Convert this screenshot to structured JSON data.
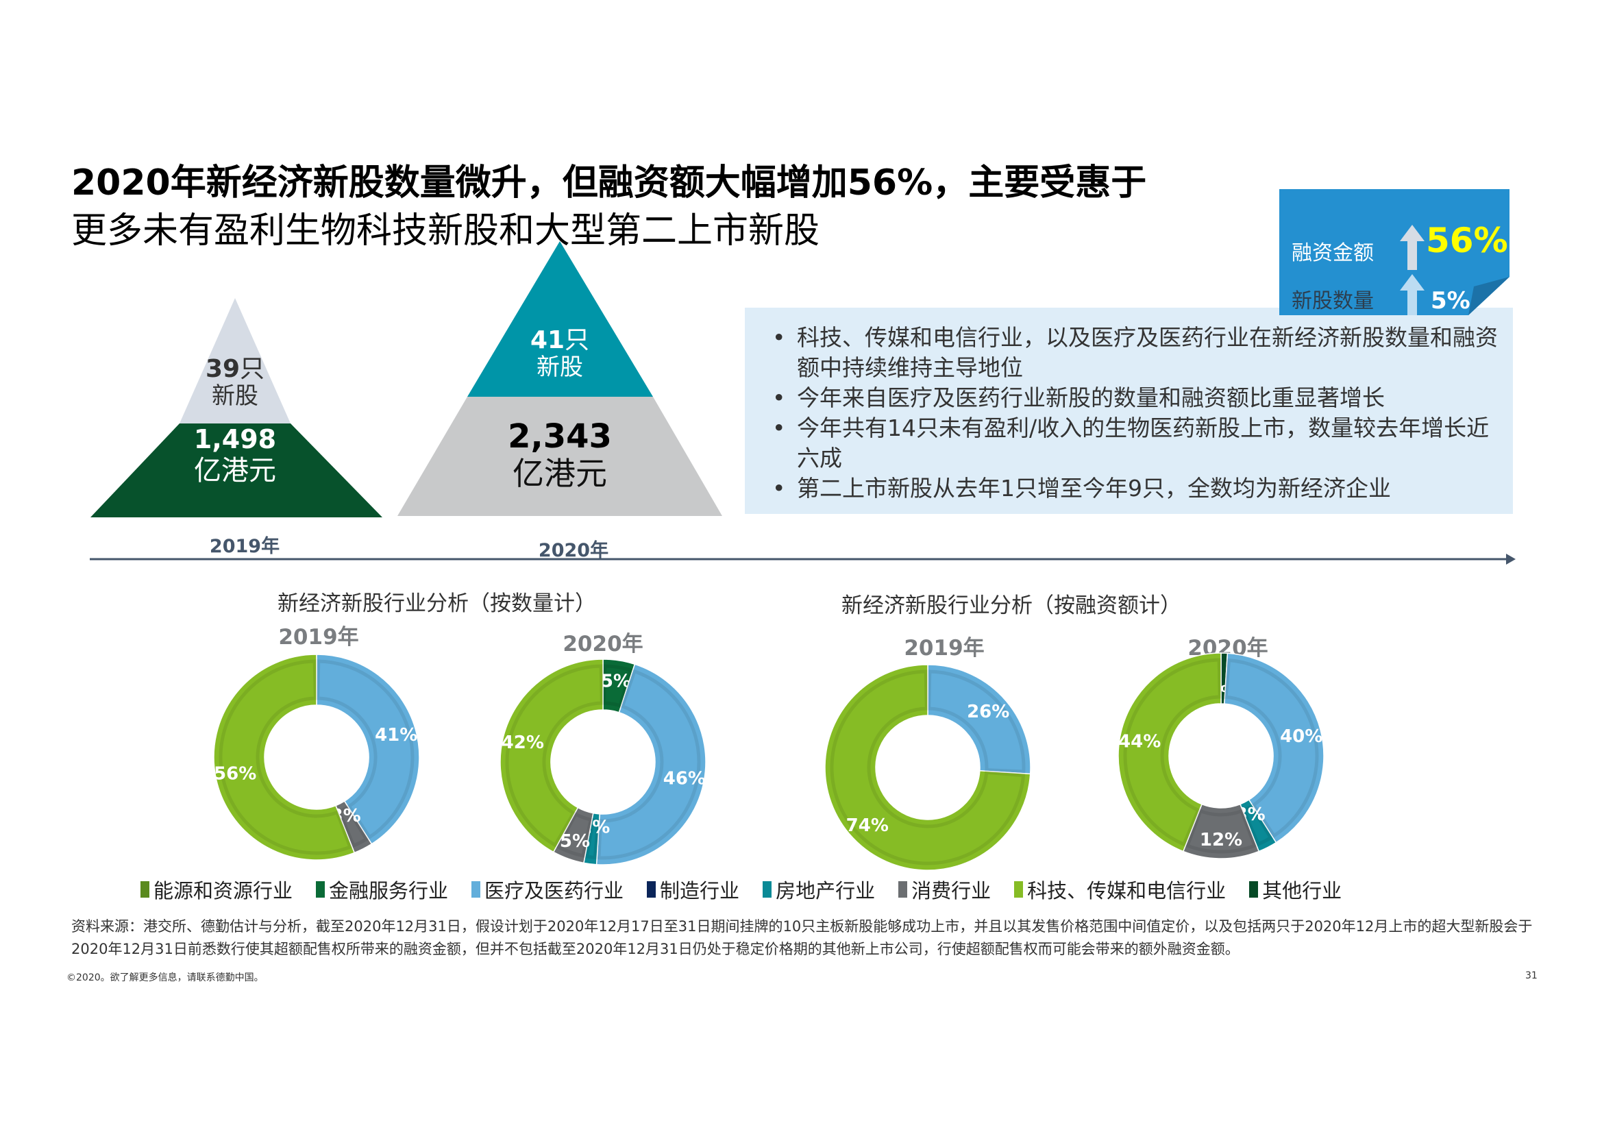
{
  "title": {
    "line1": "2020年新经济新股数量微升，但融资额大幅增加56%，主要受惠于",
    "line2": "更多未有盈利生物科技新股和大型第二上市新股"
  },
  "callout": {
    "funding_label": "融资金额",
    "funding_value": "56%",
    "count_label": "新股数量",
    "count_value": "5%",
    "colors": {
      "bg": "#2490d0",
      "fold": "#1c72a8",
      "highlight": "#ffff00"
    }
  },
  "pyramids": {
    "y2019": {
      "count_number": "39",
      "count_unit": "只",
      "count_label": "新股",
      "amount": "1,498",
      "amount_unit": "亿港元",
      "year_label": "2019年",
      "top_color": "#d6dce5",
      "bottom_color": "#07522c"
    },
    "y2020": {
      "count_number": "41",
      "count_unit": "只",
      "count_label": "新股",
      "amount": "2,343",
      "amount_unit": "亿港元",
      "year_label": "2020年",
      "top_color": "#0095a8",
      "bottom_color": "#c8c9ca"
    }
  },
  "info_bullets": [
    "科技、传媒和电信行业，以及医疗及医药行业在新经济新股数量和融资额中持续维持主导地位",
    "今年来自医疗及医药行业新股的数量和融资额比重显著增长",
    "今年共有14只未有盈利/收入的生物医药新股上市，数量较去年增长近六成",
    "第二上市新股从去年1只增至今年9只，全数均为新经济企业"
  ],
  "chart_data": [
    {
      "type": "pie",
      "variant": "donut",
      "title": "新经济新股行业分析（按数量计）",
      "subtitle": "2019年",
      "categories": [
        "医疗及医药行业",
        "消费行业",
        "科技、传媒和电信行业"
      ],
      "values": [
        41,
        3,
        56
      ],
      "labels": [
        "41%",
        "3%",
        "56%"
      ]
    },
    {
      "type": "pie",
      "variant": "donut",
      "title": "新经济新股行业分析（按数量计）",
      "subtitle": "2020年",
      "categories": [
        "金融服务行业",
        "医疗及医药行业",
        "房地产行业",
        "消费行业",
        "科技、传媒和电信行业"
      ],
      "values": [
        5,
        46,
        2,
        5,
        42
      ],
      "labels": [
        "5%",
        "46%",
        "2%",
        "5%",
        "42%"
      ]
    },
    {
      "type": "pie",
      "variant": "donut",
      "title": "新经济新股行业分析（按融资额计）",
      "subtitle": "2019年",
      "categories": [
        "医疗及医药行业",
        "科技、传媒和电信行业"
      ],
      "values": [
        26,
        74
      ],
      "labels": [
        "26%",
        "74%"
      ]
    },
    {
      "type": "pie",
      "variant": "donut",
      "title": "新经济新股行业分析（按融资额计）",
      "subtitle": "2020年",
      "categories": [
        "其他行业",
        "医疗及医药行业",
        "房地产行业",
        "消费行业",
        "科技、传媒和电信行业"
      ],
      "values": [
        1,
        40,
        3,
        12,
        44
      ],
      "labels": [
        "1%",
        "40%",
        "3%",
        "12%",
        "44%"
      ]
    }
  ],
  "charts_section": {
    "left_title": "新经济新股行业分析（按数量计）",
    "right_title": "新经济新股行业分析（按融资额计）",
    "years": [
      "2019年",
      "2020年",
      "2019年",
      "2020年"
    ]
  },
  "legend": [
    {
      "label": "能源和资源行业",
      "color": "#5a8a1e"
    },
    {
      "label": "金融服务行业",
      "color": "#0a6b37"
    },
    {
      "label": "医疗及医药行业",
      "color": "#62aedb"
    },
    {
      "label": "制造行业",
      "color": "#0b2559"
    },
    {
      "label": "房地产行业",
      "color": "#0a8a96"
    },
    {
      "label": "消费行业",
      "color": "#6b6e71"
    },
    {
      "label": "科技、传媒和电信行业",
      "color": "#86bc25"
    },
    {
      "label": "其他行业",
      "color": "#064a26"
    }
  ],
  "category_colors": {
    "能源和资源行业": "#5a8a1e",
    "金融服务行业": "#0a6b37",
    "医疗及医药行业": "#62aedb",
    "制造行业": "#0b2559",
    "房地产行业": "#0a8a96",
    "消费行业": "#6b6e71",
    "科技、传媒和电信行业": "#86bc25",
    "其他行业": "#064a26"
  },
  "footnote": "资料来源：港交所、德勤估计与分析，截至2020年12月31日，假设计划于2020年12月17日至31日期间挂牌的10只主板新股能够成功上市，并且以其发售价格范围中间值定价，以及包括两只于2020年12月上市的超大型新股会于2020年12月31日前悉数行使其超额配售权所带来的融资金额，但并不包括截至2020年12月31日仍处于稳定价格期的其他新上市公司，行使超额配售权而可能会带来的额外融资金额。",
  "footer": {
    "copyright": "©2020。欲了解更多信息，请联系德勤中国。",
    "page_number": "31"
  }
}
